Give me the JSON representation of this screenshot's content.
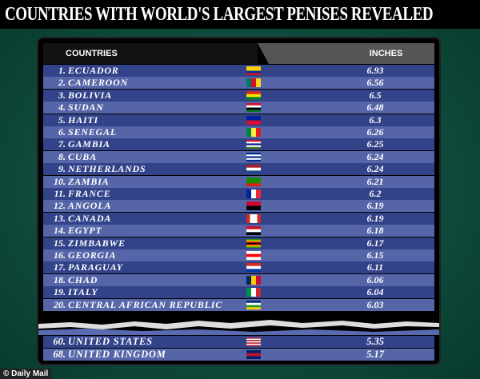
{
  "title": "COUNTRIES WITH WORLD'S LARGEST PENISES REVEALED",
  "table": {
    "headers": [
      "COUNTRIES",
      "INCHES"
    ],
    "rows": [
      {
        "rank": "1.",
        "country": "ECUADOR",
        "inches": 6.93
      },
      {
        "rank": "2.",
        "country": "CAMEROON",
        "inches": 6.56
      },
      {
        "rank": "3.",
        "country": "BOLIVIA",
        "inches": 6.5
      },
      {
        "rank": "4.",
        "country": "SUDAN",
        "inches": 6.48
      },
      {
        "rank": "5.",
        "country": "HAITI",
        "inches": 6.3
      },
      {
        "rank": "6.",
        "country": "SENEGAL",
        "inches": 6.26
      },
      {
        "rank": "7.",
        "country": "GAMBIA",
        "inches": 6.25
      },
      {
        "rank": "8.",
        "country": "CUBA",
        "inches": 6.24
      },
      {
        "rank": "9.",
        "country": "NETHERLANDS",
        "inches": 6.24
      },
      {
        "rank": "10.",
        "country": "ZAMBIA",
        "inches": 6.21
      },
      {
        "rank": "11.",
        "country": "FRANCE",
        "inches": 6.2
      },
      {
        "rank": "12.",
        "country": "ANGOLA",
        "inches": 6.19
      },
      {
        "rank": "13.",
        "country": "CANADA",
        "inches": 6.19
      },
      {
        "rank": "14.",
        "country": "EGYPT",
        "inches": 6.18
      },
      {
        "rank": "15.",
        "country": "ZIMBABWE",
        "inches": 6.17
      },
      {
        "rank": "16.",
        "country": "GEORGIA",
        "inches": 6.15
      },
      {
        "rank": "17.",
        "country": "PARAGUAY",
        "inches": 6.11
      },
      {
        "rank": "18.",
        "country": "CHAD",
        "inches": 6.06
      },
      {
        "rank": "19.",
        "country": "ITALY",
        "inches": 6.04
      },
      {
        "rank": "20.",
        "country": "CENTRAL AFRICAN REPUBLIC",
        "inches": 6.03
      }
    ],
    "bottom_rows": [
      {
        "rank": "60.",
        "country": "UNITED STATES",
        "inches": 5.35
      },
      {
        "rank": "68.",
        "country": "UNITED KINGDOM",
        "inches": 5.17
      }
    ]
  },
  "footer": "© Daily Mail"
}
